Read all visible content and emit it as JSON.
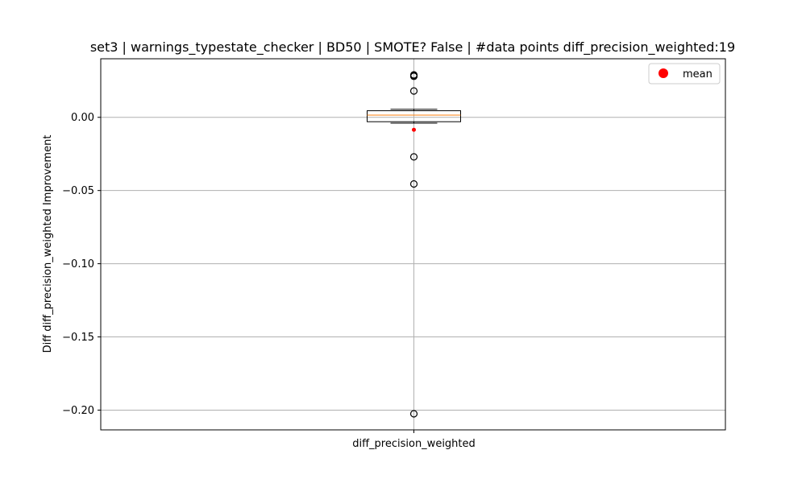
{
  "chart_data": {
    "type": "box",
    "title": "set3 | warnings_typestate_checker | BD50 | SMOTE? False | #data points diff_precision_weighted:19",
    "xlabel": "",
    "ylabel": "Diff diff_precision_weighted Improvement",
    "categories": [
      "diff_precision_weighted"
    ],
    "ylim": [
      -0.2135,
      0.04
    ],
    "yticks": [
      0.0,
      -0.05,
      -0.1,
      -0.15,
      -0.2
    ],
    "ytick_labels": [
      "0.00",
      "−0.05",
      "−0.10",
      "−0.15",
      "−0.20"
    ],
    "grid": true,
    "legend": {
      "position": "top-right",
      "entries": [
        {
          "label": "mean",
          "color": "#ff0000",
          "marker": "circle"
        }
      ]
    },
    "box": {
      "q1": -0.003,
      "median": 0.0015,
      "q3": 0.0045,
      "whisker_low": -0.004,
      "whisker_high": 0.0055,
      "mean": -0.0085,
      "outliers": [
        0.029,
        0.0285,
        0.028,
        0.018,
        -0.027,
        -0.0455,
        -0.2025
      ]
    },
    "colors": {
      "box": "#000000",
      "median": "#ff7f0e",
      "mean": "#ff0000",
      "grid": "#b0b0b0"
    }
  }
}
